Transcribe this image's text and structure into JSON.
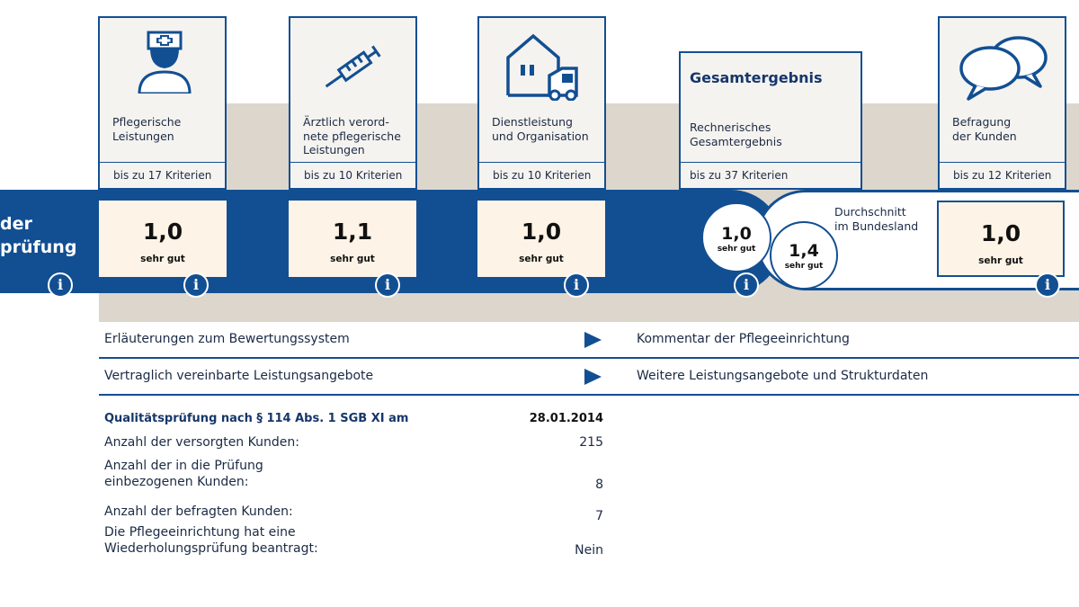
{
  "band": {
    "label_line1": "der",
    "label_line2": "prüfung"
  },
  "categories": [
    {
      "title_lines": [
        "Pflegerische",
        "Leistungen"
      ],
      "criteria": "bis zu 17 Kriterien",
      "grade": "1,0",
      "grade_label": "sehr gut",
      "icon": "nurse-icon"
    },
    {
      "title_lines": [
        "Ärztlich verord-",
        "nete pflegerische",
        "Leistungen"
      ],
      "criteria": "bis zu 10 Kriterien",
      "grade": "1,1",
      "grade_label": "sehr gut",
      "icon": "syringe-icon"
    },
    {
      "title_lines": [
        "Dienstleistung",
        "und Organisation"
      ],
      "criteria": "bis zu 10 Kriterien",
      "grade": "1,0",
      "grade_label": "sehr gut",
      "icon": "house-vehicle-icon"
    },
    {
      "title_lines": [
        "Befragung",
        "der Kunden"
      ],
      "criteria": "bis zu 12 Kriterien",
      "grade": "1,0",
      "grade_label": "sehr gut",
      "icon": "speech-bubbles-icon"
    }
  ],
  "overall": {
    "title": "Gesamtergebnis",
    "subtitle_lines": [
      "Rechnerisches",
      "Gesamtergebnis"
    ],
    "criteria": "bis zu 37 Kriterien",
    "grade": "1,0",
    "grade_label": "sehr gut",
    "state_avg_label_lines": [
      "Durchschnitt",
      "im Bundesland"
    ],
    "state_avg_grade": "1,4",
    "state_avg_grade_label": "sehr gut"
  },
  "info_icon_glyph": "i",
  "links": [
    {
      "left": "Erläuterungen zum Bewertungssystem",
      "right": "Kommentar der Pflegeeinrichtung"
    },
    {
      "left": "Vertraglich vereinbarte Leistungsangebote",
      "right": "Weitere Leistungsangebote und Strukturdaten"
    }
  ],
  "details": {
    "header_label": "Qualitätsprüfung nach § 114 Abs. 1 SGB XI am",
    "header_value": "28.01.2014",
    "rows": [
      {
        "label_lines": [
          "Anzahl der versorgten Kunden:"
        ],
        "value": "215"
      },
      {
        "label_lines": [
          "Anzahl der in die Prüfung",
          "einbezogenen Kunden:"
        ],
        "value": "8"
      },
      {
        "label_lines": [
          "Anzahl der befragten Kunden:"
        ],
        "value": "7"
      },
      {
        "label_lines": [
          "Die Pflegeeinrichtung hat eine",
          "Wiederholungsprüfung beantragt:"
        ],
        "value": "Nein"
      }
    ]
  },
  "colors": {
    "brand_blue": "#124f92",
    "beige": "#ddd6cc",
    "grade_bg": "#fdf3e6",
    "card_bg": "#f5f3f0"
  }
}
